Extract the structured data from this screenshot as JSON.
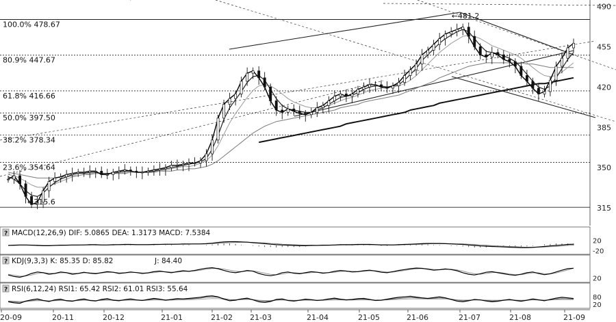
{
  "chart_data": {
    "type": "line",
    "main": {
      "y_ticks": [
        490,
        455,
        420,
        385,
        350,
        315
      ],
      "ylim": [
        308,
        492
      ],
      "fib_levels": [
        {
          "pct": "100.0%",
          "value": 478.67,
          "text": "100.0%  478.67"
        },
        {
          "pct": "80.9%",
          "value": 447.67,
          "text": "80.9%  447.67"
        },
        {
          "pct": "61.8%",
          "value": 416.66,
          "text": "61.8%  416.66"
        },
        {
          "pct": "50.0%",
          "value": 397.5,
          "text": "50.0%  397.50"
        },
        {
          "pct": "38.2%",
          "value": 378.34,
          "text": "38.2%  378.34"
        },
        {
          "pct": "23.6%",
          "value": 354.64,
          "text": "23.6%  354.64"
        }
      ],
      "low_marker": {
        "text": "←315.6",
        "value": 315.6
      },
      "high_marker": {
        "text": "←481.2",
        "value": 481.2
      },
      "price": [
        340,
        343,
        336,
        325,
        318,
        320,
        330,
        338,
        341,
        342,
        344,
        345,
        346,
        346,
        347,
        347,
        344,
        344,
        346,
        347,
        348,
        347,
        346,
        346,
        347,
        348,
        349,
        350,
        352,
        352,
        353,
        354,
        354,
        356,
        362,
        374,
        393,
        405,
        410,
        414,
        425,
        432,
        434,
        428,
        420,
        408,
        400,
        398,
        401,
        399,
        397,
        396,
        398,
        402,
        404,
        408,
        412,
        414,
        412,
        414,
        418,
        420,
        422,
        422,
        420,
        419,
        421,
        424,
        430,
        435,
        440,
        448,
        452,
        457,
        462,
        466,
        468,
        470,
        472,
        464,
        455,
        448,
        446,
        450,
        448,
        444,
        442,
        438,
        430,
        425,
        419,
        414,
        416,
        426,
        438,
        445,
        454,
        458
      ],
      "ma_fast": [
        342,
        340,
        336,
        330,
        326,
        325,
        328,
        333,
        337,
        340,
        342,
        344,
        345,
        345,
        346,
        346,
        345,
        345,
        345,
        346,
        347,
        347,
        346,
        346,
        346,
        347,
        348,
        349,
        350,
        351,
        352,
        353,
        354,
        355,
        358,
        366,
        378,
        392,
        402,
        409,
        416,
        424,
        429,
        430,
        426,
        418,
        410,
        404,
        401,
        400,
        399,
        398,
        398,
        400,
        402,
        405,
        408,
        411,
        412,
        413,
        415,
        418,
        420,
        421,
        421,
        420,
        421,
        422,
        426,
        431,
        436,
        443,
        448,
        453,
        458,
        462,
        465,
        468,
        470,
        468,
        462,
        456,
        451,
        450,
        449,
        447,
        445,
        442,
        437,
        431,
        425,
        420,
        418,
        421,
        428,
        436,
        444,
        450
      ],
      "ma_mid": [
        344,
        343,
        341,
        338,
        335,
        333,
        333,
        334,
        336,
        338,
        340,
        342,
        343,
        344,
        345,
        345,
        345,
        345,
        345,
        345,
        346,
        346,
        346,
        346,
        346,
        347,
        347,
        348,
        349,
        350,
        351,
        351,
        352,
        354,
        356,
        361,
        369,
        379,
        389,
        397,
        404,
        411,
        417,
        421,
        422,
        421,
        418,
        414,
        410,
        407,
        405,
        403,
        402,
        402,
        403,
        404,
        406,
        408,
        410,
        411,
        413,
        415,
        417,
        418,
        419,
        420,
        420,
        421,
        423,
        426,
        430,
        435,
        440,
        445,
        450,
        454,
        458,
        461,
        464,
        465,
        464,
        462,
        459,
        456,
        454,
        452,
        450,
        448,
        445,
        441,
        437,
        433,
        430,
        429,
        430,
        433,
        437,
        441
      ],
      "ma_slow": [
        346,
        345,
        344,
        343,
        342,
        341,
        341,
        341,
        341,
        342,
        342,
        343,
        343,
        344,
        344,
        345,
        345,
        345,
        345,
        345,
        345,
        346,
        346,
        346,
        346,
        346,
        347,
        347,
        347,
        348,
        348,
        349,
        349,
        350,
        351,
        353,
        356,
        360,
        364,
        368,
        372,
        376,
        380,
        383,
        386,
        388,
        390,
        391,
        392,
        393,
        394,
        395,
        396,
        397,
        398,
        399,
        400,
        402,
        403,
        404,
        405,
        407,
        408,
        409,
        410,
        411,
        412,
        413,
        415,
        417,
        419,
        421,
        423,
        425,
        428,
        430,
        432,
        434,
        436,
        438,
        439,
        440,
        441,
        441,
        441,
        441,
        441,
        441,
        441,
        440,
        440,
        439,
        438,
        437,
        437,
        437,
        437,
        437
      ],
      "ma_long_start_index": 43,
      "ma_long": [
        372,
        373,
        374,
        375,
        376,
        377,
        378,
        379,
        380,
        381,
        382,
        383,
        384,
        385,
        386,
        388,
        389,
        390,
        391,
        392,
        393,
        394,
        395,
        396,
        397,
        398,
        400,
        401,
        402,
        403,
        404,
        406,
        407,
        408,
        409,
        410,
        411,
        412,
        413,
        414,
        415,
        416,
        417,
        418,
        419,
        420,
        421,
        422,
        423,
        423,
        424,
        425,
        426,
        427,
        428
      ]
    },
    "x_ticks": [
      "20-09",
      "20-11",
      "20-12",
      "21-01",
      "21-02",
      "21-03",
      "21-04",
      "21-05",
      "21-06",
      "21-07",
      "21-08",
      "21-09"
    ],
    "indicators": [
      {
        "kind": "MACD",
        "label": "MACD(12,26,9)  DIF: 5.0865  DEA: 1.3173  MACD: 7.5384",
        "ticks": [
          "20",
          "-20"
        ],
        "ylim": [
          -30,
          30
        ],
        "dif": [
          0,
          1,
          2,
          2,
          1,
          0,
          -1,
          -1,
          0,
          1,
          1,
          2,
          2,
          2,
          3,
          3,
          2,
          2,
          3,
          3,
          4,
          4,
          3,
          3,
          3,
          4,
          4,
          5,
          5,
          5,
          6,
          6,
          6,
          6,
          7,
          9,
          12,
          14,
          15,
          15,
          14,
          13,
          11,
          9,
          7,
          5,
          3,
          2,
          1,
          0,
          -1,
          -1,
          0,
          0,
          1,
          1,
          2,
          3,
          3,
          3,
          4,
          4,
          4,
          3,
          2,
          2,
          2,
          3,
          4,
          5,
          6,
          7,
          8,
          8,
          8,
          7,
          6,
          5,
          4,
          2,
          0,
          -2,
          -3,
          -4,
          -5,
          -6,
          -7,
          -8,
          -9,
          -9,
          -8,
          -6,
          -4,
          -2,
          0,
          2,
          4,
          5
        ],
        "dea": [
          0,
          0,
          1,
          1,
          1,
          1,
          0,
          0,
          0,
          0,
          1,
          1,
          1,
          2,
          2,
          2,
          2,
          2,
          2,
          3,
          3,
          3,
          3,
          3,
          3,
          3,
          4,
          4,
          4,
          5,
          5,
          5,
          6,
          6,
          6,
          7,
          8,
          10,
          11,
          12,
          13,
          13,
          12,
          11,
          10,
          8,
          7,
          5,
          4,
          3,
          2,
          1,
          1,
          0,
          0,
          1,
          1,
          2,
          2,
          2,
          3,
          3,
          3,
          3,
          3,
          3,
          2,
          2,
          3,
          3,
          4,
          5,
          6,
          7,
          7,
          7,
          7,
          6,
          6,
          5,
          4,
          2,
          1,
          -1,
          -2,
          -3,
          -4,
          -5,
          -6,
          -7,
          -7,
          -7,
          -6,
          -5,
          -4,
          -2,
          0,
          1
        ],
        "hist": [
          0,
          1,
          2,
          2,
          0,
          -2,
          -2,
          -2,
          0,
          2,
          0,
          2,
          2,
          0,
          2,
          2,
          0,
          0,
          2,
          0,
          2,
          2,
          0,
          0,
          0,
          2,
          0,
          2,
          2,
          0,
          2,
          2,
          0,
          0,
          2,
          4,
          8,
          8,
          8,
          6,
          2,
          0,
          -2,
          -4,
          -6,
          -6,
          -8,
          -6,
          -6,
          -6,
          -6,
          -4,
          -2,
          0,
          2,
          0,
          2,
          2,
          2,
          2,
          2,
          2,
          2,
          0,
          -2,
          -2,
          0,
          2,
          2,
          4,
          4,
          4,
          4,
          2,
          2,
          0,
          -2,
          -2,
          -4,
          -6,
          -8,
          -8,
          -8,
          -6,
          -6,
          -6,
          -6,
          -6,
          -6,
          -4,
          -2,
          0,
          4,
          6,
          8,
          8,
          8,
          8
        ]
      },
      {
        "kind": "KDJ",
        "label": "KDJ(9,3,3)  K: 85.35  D: 85.82",
        "label_extra": "J: 84.40",
        "ticks": [
          "20"
        ],
        "ylim": [
          0,
          100
        ],
        "k": [
          40,
          30,
          25,
          35,
          50,
          60,
          55,
          45,
          50,
          60,
          55,
          45,
          50,
          58,
          52,
          48,
          55,
          62,
          58,
          50,
          54,
          60,
          56,
          50,
          54,
          62,
          66,
          60,
          55,
          62,
          68,
          64,
          70,
          78,
          85,
          88,
          82,
          70,
          60,
          55,
          62,
          70,
          65,
          50,
          40,
          35,
          42,
          55,
          60,
          52,
          48,
          55,
          62,
          58,
          52,
          56,
          64,
          70,
          66,
          60,
          62,
          68,
          72,
          66,
          58,
          55,
          62,
          70,
          76,
          82,
          86,
          84,
          78,
          72,
          75,
          80,
          76,
          68,
          55,
          45,
          40,
          48,
          58,
          62,
          55,
          48,
          42,
          38,
          45,
          55,
          60,
          50,
          42,
          48,
          60,
          72,
          82,
          85
        ],
        "d": [
          45,
          38,
          32,
          33,
          40,
          50,
          55,
          52,
          50,
          54,
          55,
          52,
          50,
          53,
          54,
          52,
          53,
          57,
          58,
          55,
          54,
          56,
          57,
          54,
          53,
          56,
          61,
          62,
          59,
          59,
          63,
          65,
          67,
          72,
          78,
          83,
          84,
          79,
          72,
          65,
          62,
          65,
          67,
          60,
          52,
          44,
          41,
          46,
          53,
          55,
          52,
          52,
          56,
          58,
          56,
          55,
          58,
          63,
          66,
          65,
          63,
          64,
          67,
          68,
          64,
          59,
          59,
          64,
          70,
          76,
          80,
          83,
          82,
          77,
          75,
          77,
          78,
          74,
          66,
          56,
          48,
          45,
          50,
          56,
          58,
          53,
          47,
          42,
          42,
          48,
          54,
          54,
          48,
          47,
          53,
          63,
          73,
          85
        ]
      },
      {
        "kind": "RSI",
        "label": "RSI(6,12,24)  RSI1: 65.42  RSI2: 61.01  RSI3: 55.64",
        "ticks": [
          "80",
          "20"
        ],
        "ylim": [
          0,
          100
        ],
        "rsi1": [
          40,
          32,
          28,
          45,
          55,
          62,
          50,
          42,
          55,
          60,
          48,
          44,
          55,
          62,
          50,
          46,
          58,
          64,
          52,
          48,
          56,
          62,
          54,
          50,
          58,
          66,
          60,
          52,
          58,
          64,
          62,
          66,
          70,
          75,
          82,
          86,
          78,
          60,
          48,
          52,
          62,
          68,
          55,
          40,
          35,
          42,
          58,
          62,
          50,
          45,
          52,
          60,
          56,
          50,
          54,
          62,
          68,
          60,
          55,
          58,
          64,
          66,
          58,
          50,
          52,
          60,
          68,
          74,
          78,
          82,
          76,
          70,
          66,
          72,
          78,
          70,
          58,
          45,
          40,
          48,
          58,
          54,
          46,
          40,
          44,
          52,
          58,
          50,
          44,
          52,
          62,
          55,
          48,
          58,
          68,
          74,
          70,
          65
        ],
        "rsi2": [
          44,
          40,
          36,
          42,
          48,
          54,
          50,
          46,
          50,
          54,
          50,
          47,
          51,
          56,
          52,
          49,
          53,
          58,
          54,
          51,
          53,
          57,
          54,
          52,
          55,
          60,
          58,
          54,
          56,
          59,
          59,
          61,
          64,
          68,
          74,
          78,
          74,
          64,
          56,
          55,
          58,
          62,
          57,
          48,
          44,
          46,
          53,
          57,
          52,
          49,
          51,
          55,
          54,
          51,
          52,
          56,
          60,
          57,
          54,
          55,
          58,
          60,
          56,
          52,
          53,
          56,
          61,
          65,
          69,
          72,
          70,
          67,
          64,
          66,
          70,
          67,
          60,
          53,
          49,
          51,
          55,
          54,
          50,
          47,
          48,
          51,
          54,
          51,
          48,
          51,
          56,
          54,
          51,
          55,
          60,
          64,
          63,
          61
        ],
        "rsi3": [
          46,
          44,
          42,
          44,
          46,
          49,
          48,
          47,
          48,
          50,
          49,
          48,
          49,
          51,
          50,
          49,
          50,
          52,
          51,
          50,
          51,
          52,
          51,
          50,
          51,
          53,
          53,
          52,
          52,
          54,
          54,
          55,
          57,
          59,
          62,
          65,
          64,
          60,
          57,
          56,
          57,
          58,
          56,
          52,
          50,
          50,
          52,
          53,
          52,
          51,
          51,
          52,
          52,
          51,
          51,
          53,
          54,
          54,
          53,
          53,
          54,
          55,
          54,
          53,
          53,
          54,
          56,
          58,
          60,
          62,
          62,
          61,
          60,
          61,
          62,
          61,
          58,
          55,
          53,
          53,
          54,
          54,
          53,
          52,
          52,
          53,
          54,
          53,
          52,
          53,
          55,
          54,
          53,
          54,
          56,
          57,
          56,
          56
        ]
      }
    ]
  }
}
